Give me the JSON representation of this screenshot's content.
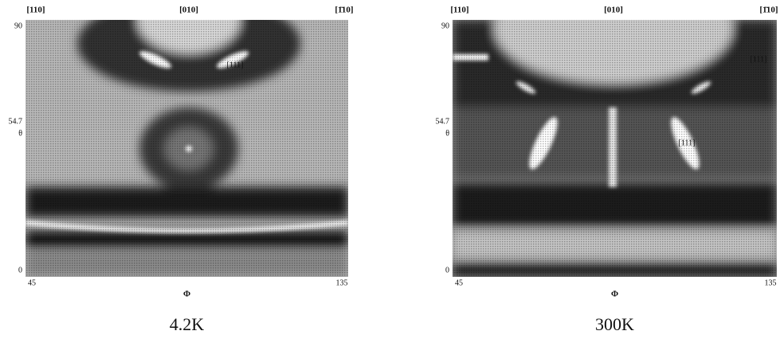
{
  "panels": [
    {
      "top_labels": [
        "[110]",
        "[010]",
        "[1̄10]"
      ],
      "y_labels": [
        "90",
        "54.7",
        "θ",
        "0"
      ],
      "x_labels": [
        "45",
        "Φ",
        "135"
      ],
      "annotations": [
        "[111]"
      ],
      "caption": "4.2K"
    },
    {
      "top_labels": [
        "[110]",
        "[010]",
        "[1̄10]"
      ],
      "y_labels": [
        "90",
        "54.7",
        "θ",
        "0"
      ],
      "x_labels": [
        "45",
        "Φ",
        "135"
      ],
      "annotations": [
        "[111]",
        "[111]"
      ],
      "caption": "300K"
    }
  ]
}
